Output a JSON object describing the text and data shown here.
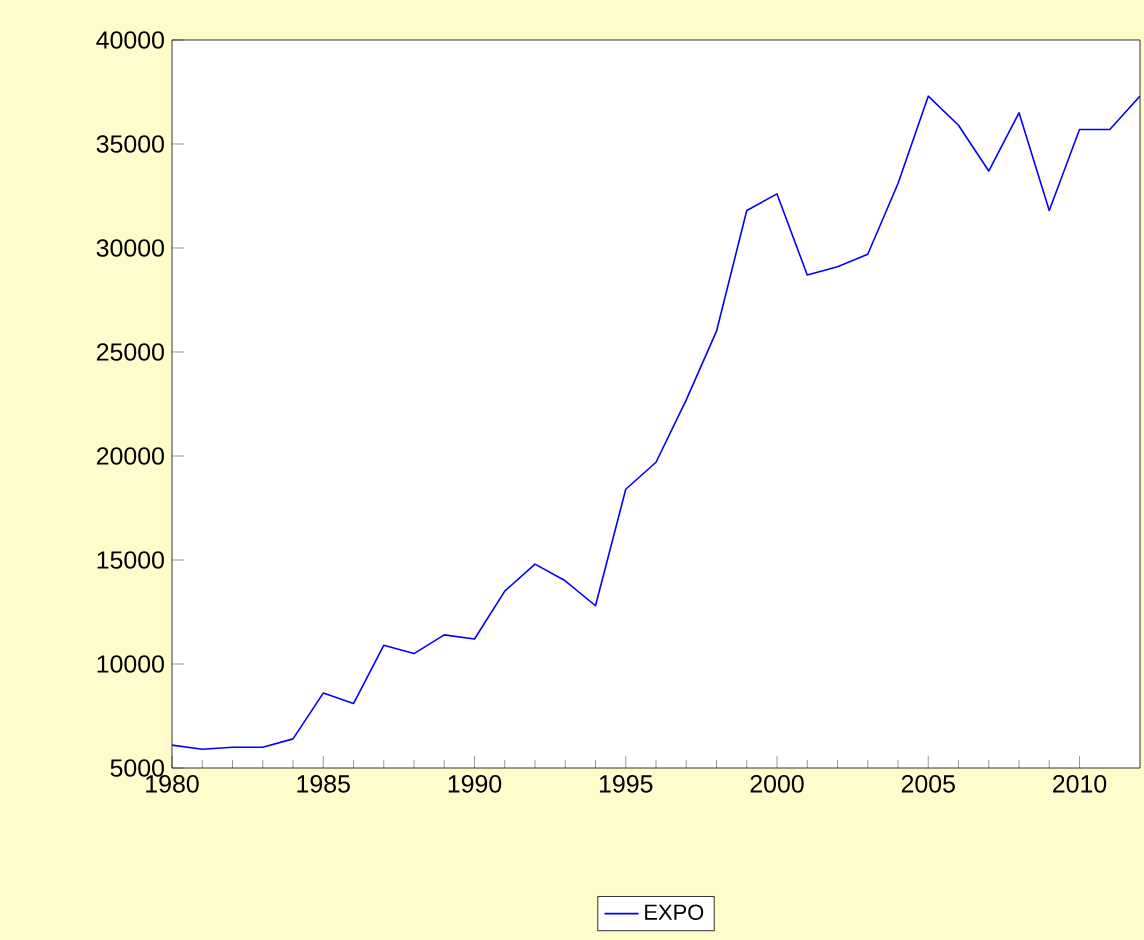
{
  "chart_data": {
    "type": "line",
    "x": [
      1980,
      1981,
      1982,
      1983,
      1984,
      1985,
      1986,
      1987,
      1988,
      1989,
      1990,
      1991,
      1992,
      1993,
      1994,
      1995,
      1996,
      1997,
      1998,
      1999,
      2000,
      2001,
      2002,
      2003,
      2004,
      2005,
      2006,
      2007,
      2008,
      2009,
      2010,
      2011,
      2012
    ],
    "series": [
      {
        "name": "EXPO",
        "color": "#0000ff",
        "values": [
          6100,
          5900,
          6000,
          6000,
          6400,
          8600,
          8100,
          10900,
          10500,
          11400,
          11200,
          13500,
          14800,
          14000,
          12800,
          18400,
          19700,
          22700,
          26000,
          31800,
          32600,
          28700,
          29100,
          29700,
          33100,
          37300,
          35900,
          33700,
          36500,
          31800,
          35700,
          35700,
          37300
        ]
      }
    ],
    "xlim": [
      1980,
      2012
    ],
    "xticks": [
      1980,
      1985,
      1990,
      1995,
      2000,
      2005,
      2010
    ],
    "ylim": [
      5000,
      40000
    ],
    "yticks": [
      5000,
      10000,
      15000,
      20000,
      25000,
      30000,
      35000,
      40000
    ],
    "legend": "bottom",
    "grid": false,
    "marker": "none",
    "line_style": "solid"
  }
}
